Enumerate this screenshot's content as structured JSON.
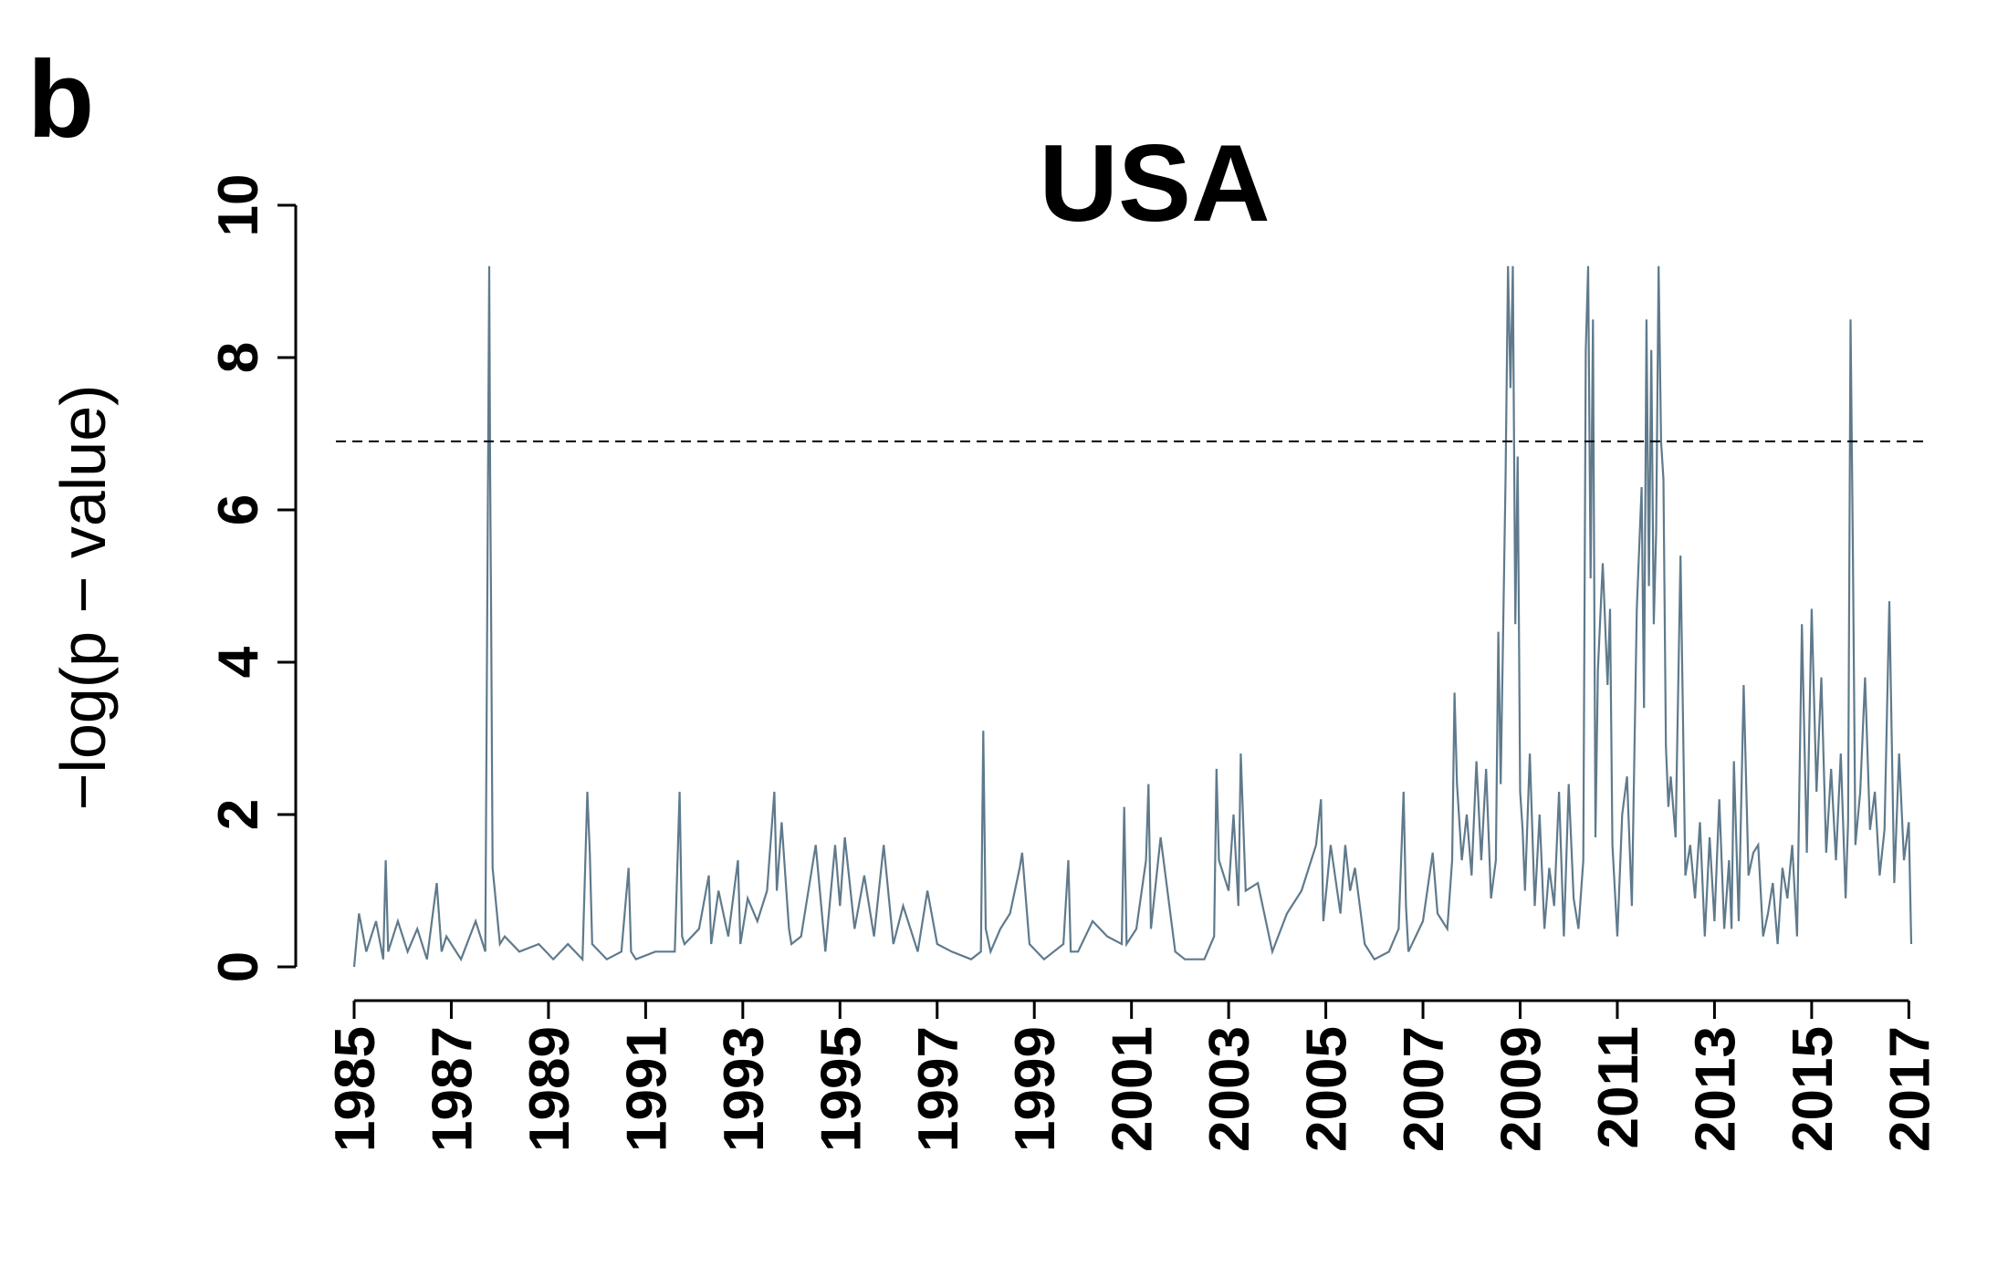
{
  "panel_label": "b",
  "chart_data": {
    "type": "line",
    "title": "USA",
    "xlabel": "",
    "ylabel": "−log(p − value)",
    "xlim": [
      1985.0,
      2017.05
    ],
    "ylim": [
      0,
      10
    ],
    "x_ticks": [
      1985,
      1987,
      1989,
      1991,
      1993,
      1995,
      1997,
      1999,
      2001,
      2003,
      2005,
      2007,
      2009,
      2011,
      2013,
      2015,
      2017
    ],
    "x_tick_labels": [
      "1985",
      "1987",
      "1989",
      "1991",
      "1993",
      "1995",
      "1997",
      "1999",
      "2001",
      "2003",
      "2005",
      "2007",
      "2009",
      "2011",
      "2013",
      "2015",
      "2017"
    ],
    "y_ticks": [
      0,
      2,
      4,
      6,
      8,
      10
    ],
    "y_tick_labels": [
      "0",
      "2",
      "4",
      "6",
      "8",
      "10"
    ],
    "threshold_line": {
      "y": 6.9,
      "style": "dashed"
    },
    "grid": false,
    "colors": {
      "series": "#5f7a8c",
      "threshold": "#000000",
      "axis": "#000000"
    },
    "series": [
      {
        "name": "",
        "x": [
          1985.0,
          1985.1,
          1985.25,
          1985.45,
          1985.6,
          1985.65,
          1985.7,
          1985.9,
          1986.1,
          1986.3,
          1986.5,
          1986.7,
          1986.8,
          1986.9,
          1987.2,
          1987.5,
          1987.7,
          1987.78,
          1987.8,
          1987.82,
          1987.85,
          1987.88,
          1988.0,
          1988.1,
          1988.4,
          1988.8,
          1989.1,
          1989.4,
          1989.7,
          1989.8,
          1989.85,
          1989.9,
          1990.2,
          1990.5,
          1990.65,
          1990.7,
          1990.8,
          1991.2,
          1991.6,
          1991.7,
          1991.75,
          1991.8,
          1992.1,
          1992.3,
          1992.35,
          1992.5,
          1992.7,
          1992.9,
          1992.95,
          1993.1,
          1993.3,
          1993.5,
          1993.65,
          1993.7,
          1993.8,
          1993.95,
          1994.0,
          1994.2,
          1994.5,
          1994.7,
          1994.9,
          1995.0,
          1995.1,
          1995.3,
          1995.5,
          1995.7,
          1995.9,
          1996.1,
          1996.3,
          1996.6,
          1996.8,
          1997.0,
          1997.3,
          1997.7,
          1997.9,
          1997.95,
          1998.0,
          1998.1,
          1998.3,
          1998.5,
          1998.7,
          1998.75,
          1998.9,
          1999.2,
          1999.6,
          1999.7,
          1999.75,
          1999.9,
          2000.2,
          2000.5,
          2000.8,
          2000.85,
          2000.9,
          2001.1,
          2001.3,
          2001.35,
          2001.4,
          2001.6,
          2001.9,
          2002.1,
          2002.5,
          2002.7,
          2002.75,
          2002.8,
          2003.0,
          2003.1,
          2003.2,
          2003.25,
          2003.35,
          2003.6,
          2003.9,
          2004.2,
          2004.5,
          2004.8,
          2004.9,
          2004.95,
          2005.1,
          2005.3,
          2005.4,
          2005.5,
          2005.6,
          2005.8,
          2006.0,
          2006.3,
          2006.5,
          2006.6,
          2006.65,
          2006.7,
          2007.0,
          2007.2,
          2007.3,
          2007.5,
          2007.6,
          2007.65,
          2007.7,
          2007.8,
          2007.9,
          2008.0,
          2008.1,
          2008.2,
          2008.3,
          2008.4,
          2008.5,
          2008.55,
          2008.6,
          2008.7,
          2008.75,
          2008.8,
          2008.85,
          2008.9,
          2008.95,
          2009.0,
          2009.05,
          2009.1,
          2009.2,
          2009.3,
          2009.4,
          2009.5,
          2009.6,
          2009.7,
          2009.8,
          2009.9,
          2010.0,
          2010.1,
          2010.2,
          2010.3,
          2010.35,
          2010.4,
          2010.45,
          2010.5,
          2010.55,
          2010.6,
          2010.7,
          2010.8,
          2010.85,
          2010.9,
          2011.0,
          2011.1,
          2011.2,
          2011.3,
          2011.4,
          2011.5,
          2011.55,
          2011.6,
          2011.65,
          2011.7,
          2011.75,
          2011.8,
          2011.85,
          2011.9,
          2011.95,
          2012.0,
          2012.05,
          2012.1,
          2012.2,
          2012.3,
          2012.4,
          2012.5,
          2012.6,
          2012.7,
          2012.8,
          2012.9,
          2013.0,
          2013.1,
          2013.2,
          2013.3,
          2013.35,
          2013.4,
          2013.5,
          2013.6,
          2013.7,
          2013.8,
          2013.9,
          2014.0,
          2014.1,
          2014.2,
          2014.3,
          2014.4,
          2014.5,
          2014.6,
          2014.7,
          2014.8,
          2014.9,
          2015.0,
          2015.1,
          2015.2,
          2015.3,
          2015.4,
          2015.5,
          2015.6,
          2015.7,
          2015.75,
          2015.8,
          2015.85,
          2015.9,
          2016.0,
          2016.1,
          2016.2,
          2016.3,
          2016.4,
          2016.5,
          2016.6,
          2016.7,
          2016.8,
          2016.9,
          2017.0,
          2017.05
        ],
        "y": [
          0.0,
          0.7,
          0.2,
          0.6,
          0.1,
          1.4,
          0.2,
          0.6,
          0.2,
          0.5,
          0.1,
          1.1,
          0.2,
          0.4,
          0.1,
          0.6,
          0.2,
          9.2,
          6.5,
          4.6,
          1.3,
          1.1,
          0.3,
          0.4,
          0.2,
          0.3,
          0.1,
          0.3,
          0.1,
          2.3,
          1.5,
          0.3,
          0.1,
          0.2,
          1.3,
          0.2,
          0.1,
          0.2,
          0.2,
          2.3,
          0.4,
          0.3,
          0.5,
          1.2,
          0.3,
          1.0,
          0.4,
          1.4,
          0.3,
          0.9,
          0.6,
          1.0,
          2.3,
          1.0,
          1.9,
          0.5,
          0.3,
          0.4,
          1.6,
          0.2,
          1.6,
          0.8,
          1.7,
          0.5,
          1.2,
          0.4,
          1.6,
          0.3,
          0.8,
          0.2,
          1.0,
          0.3,
          0.2,
          0.1,
          0.2,
          3.1,
          0.5,
          0.2,
          0.5,
          0.7,
          1.3,
          1.5,
          0.3,
          0.1,
          0.3,
          1.4,
          0.2,
          0.2,
          0.6,
          0.4,
          0.3,
          2.1,
          0.3,
          0.5,
          1.4,
          2.4,
          0.5,
          1.7,
          0.2,
          0.1,
          0.1,
          0.4,
          2.6,
          1.4,
          1.0,
          2.0,
          0.8,
          2.8,
          1.0,
          1.1,
          0.2,
          0.7,
          1.0,
          1.6,
          2.2,
          0.6,
          1.6,
          0.7,
          1.6,
          1.0,
          1.3,
          0.3,
          0.1,
          0.2,
          0.5,
          2.3,
          0.8,
          0.2,
          0.6,
          1.5,
          0.7,
          0.5,
          1.4,
          3.6,
          2.4,
          1.4,
          2.0,
          1.2,
          2.7,
          1.4,
          2.6,
          0.9,
          1.4,
          4.4,
          2.4,
          6.4,
          9.2,
          7.6,
          9.2,
          4.5,
          6.7,
          2.3,
          1.8,
          1.0,
          2.8,
          0.8,
          2.0,
          0.5,
          1.3,
          0.8,
          2.3,
          0.4,
          2.4,
          0.9,
          0.5,
          1.4,
          8.1,
          9.2,
          5.1,
          8.5,
          1.7,
          3.9,
          5.3,
          3.7,
          4.7,
          1.6,
          0.4,
          2.0,
          2.5,
          0.8,
          4.7,
          6.3,
          3.4,
          8.5,
          5.0,
          8.1,
          4.5,
          5.7,
          9.2,
          6.9,
          6.4,
          2.9,
          2.1,
          2.5,
          1.7,
          5.4,
          1.2,
          1.6,
          0.9,
          1.9,
          0.4,
          1.7,
          0.6,
          2.2,
          0.5,
          1.4,
          0.5,
          2.7,
          0.6,
          3.7,
          1.2,
          1.5,
          1.6,
          0.4,
          0.7,
          1.1,
          0.3,
          1.3,
          0.9,
          1.6,
          0.4,
          4.5,
          1.5,
          4.7,
          2.3,
          3.8,
          1.5,
          2.6,
          1.4,
          2.8,
          0.9,
          1.9,
          8.5,
          5.4,
          1.6,
          2.3,
          3.8,
          1.8,
          2.3,
          1.2,
          1.8,
          4.8,
          1.1,
          2.8,
          1.4,
          1.9,
          0.3
        ]
      }
    ]
  }
}
